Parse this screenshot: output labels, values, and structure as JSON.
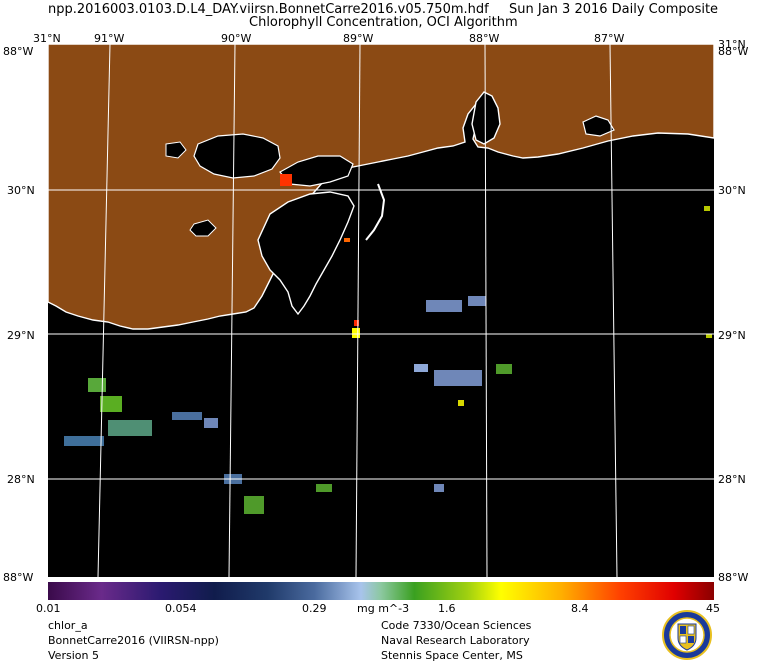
{
  "header": {
    "filename": "npp.2016003.0103.D.L4_DAY.viirsn.BonnetCarre2016.v05.750m.hdf",
    "date_label": "Sun Jan  3 2016 Daily Composite",
    "product": "Chlorophyll Concentration, OCI Algorithm"
  },
  "map": {
    "lon_labels": [
      "91°W",
      "90°W",
      "89°W",
      "88°W",
      "87°W"
    ],
    "lat_labels": [
      "30°N",
      "29°N",
      "28°N"
    ],
    "corner_top": "31°N",
    "corner_side_top": "88°W",
    "corner_bottom": "88°W",
    "colors": {
      "land": "#8b4a14",
      "water": "#000000",
      "coast": "#ffffff",
      "grid": "#ffffff"
    }
  },
  "colorbar": {
    "ticks": [
      "0.01",
      "0.054",
      "0.29",
      "1.6",
      "8.4",
      "45"
    ],
    "units": "mg m^-3",
    "scale": "log",
    "range": [
      0.01,
      45
    ]
  },
  "footer": {
    "left": [
      "chlor_a",
      "BonnetCarre2016 (VIIRSN-npp)",
      "Version 5"
    ],
    "right": [
      "Code 7330/Ocean Sciences",
      "Naval Research Laboratory",
      "Stennis Space Center, MS"
    ]
  }
}
